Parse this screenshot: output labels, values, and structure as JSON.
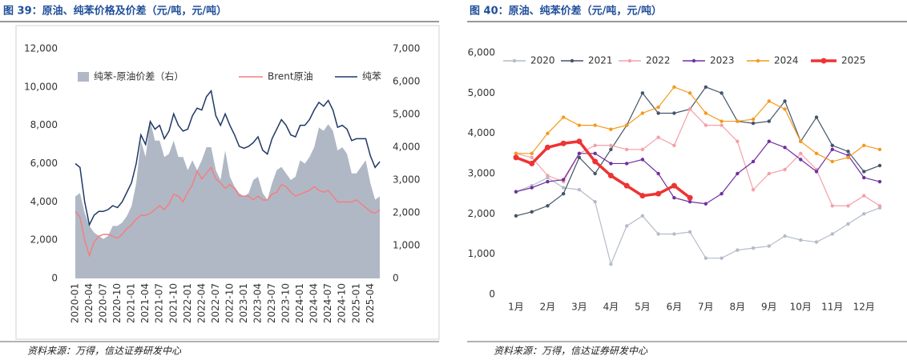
{
  "chart_data": [
    {
      "type": "line",
      "title": "图 39：原油、纯苯价格及价差（元/吨，元/吨）",
      "source": "资料来源：万得，信达证券研发中心",
      "categories": [
        "2020-01",
        null,
        null,
        "2020-04",
        null,
        null,
        "2020-07",
        null,
        null,
        "2020-10",
        null,
        null,
        "2021-01",
        null,
        null,
        "2021-04",
        null,
        null,
        "2021-07",
        null,
        null,
        "2021-10",
        null,
        null,
        "2022-01",
        null,
        null,
        "2022-04",
        null,
        null,
        "2022-07",
        null,
        null,
        "2022-10",
        null,
        null,
        "2023-01",
        null,
        null,
        "2023-04",
        null,
        null,
        "2023-07",
        null,
        null,
        "2023-10",
        null,
        null,
        "2024-01",
        null,
        null,
        "2024-04",
        null,
        null,
        "2024-07",
        null,
        null,
        "2024-10",
        null,
        null,
        "2025-01",
        null,
        null,
        "2025-04",
        null,
        null
      ],
      "series": [
        {
          "name": "纯苯-原油价差（右）",
          "type": "area",
          "axis": "y2",
          "color": "#b0b8c6",
          "values": [
            2500,
            2600,
            2000,
            1600,
            1400,
            1300,
            1200,
            1300,
            1600,
            1600,
            1700,
            1900,
            2200,
            2900,
            4200,
            3700,
            4800,
            4200,
            4200,
            3700,
            3800,
            4200,
            3700,
            3700,
            3300,
            3600,
            3300,
            3600,
            4000,
            4000,
            3300,
            3000,
            3900,
            3100,
            2800,
            2600,
            2500,
            2600,
            3000,
            3100,
            2600,
            2400,
            2900,
            3300,
            3400,
            3200,
            3000,
            3100,
            3600,
            3500,
            3700,
            4000,
            4600,
            4500,
            4700,
            4500,
            3900,
            4000,
            3800,
            3200,
            3200,
            3400,
            3600,
            2900,
            2400,
            2500
          ]
        },
        {
          "name": "Brent原油",
          "type": "line",
          "color": "#f47f7f",
          "values": [
            3500,
            3200,
            2000,
            1200,
            1900,
            2200,
            2300,
            2300,
            2200,
            2100,
            2300,
            2600,
            2800,
            3100,
            3300,
            3300,
            3400,
            3600,
            3800,
            3600,
            3900,
            4400,
            4300,
            4000,
            4500,
            4900,
            5600,
            5200,
            5500,
            5800,
            5200,
            5000,
            4700,
            4900,
            4700,
            4300,
            4300,
            4300,
            4100,
            4300,
            4100,
            4100,
            4400,
            4500,
            4900,
            4800,
            4500,
            4300,
            4400,
            4500,
            4600,
            4800,
            4600,
            4500,
            4600,
            4300,
            4000,
            4000,
            4000,
            4000,
            4100,
            3900,
            3700,
            3500,
            3400,
            3600
          ]
        },
        {
          "name": "纯苯",
          "type": "line",
          "color": "#1f3864",
          "values": [
            6000,
            5800,
            4000,
            2800,
            3300,
            3500,
            3500,
            3600,
            3800,
            3700,
            4000,
            4500,
            5000,
            6000,
            7500,
            7000,
            8200,
            7800,
            8000,
            7300,
            7700,
            8600,
            8000,
            7700,
            7800,
            8500,
            8900,
            8800,
            9500,
            9800,
            8500,
            8000,
            8600,
            8000,
            7500,
            6900,
            6800,
            6900,
            7100,
            7400,
            6700,
            6500,
            7300,
            7800,
            8300,
            8000,
            7500,
            7400,
            8000,
            8000,
            8300,
            8800,
            9200,
            9000,
            9300,
            8800,
            7900,
            8000,
            7800,
            7200,
            7300,
            7300,
            7300,
            6400,
            5800,
            6100
          ]
        }
      ],
      "ylim": [
        0,
        12000
      ],
      "yticks": [
        0,
        {
          "value": 2000,
          "label": "2,000"
        },
        {
          "value": 4000,
          "label": "4,000"
        },
        {
          "value": 6000,
          "label": "6,000"
        },
        {
          "value": 8000,
          "label": "8,000"
        },
        {
          "value": 10000,
          "label": "10,000"
        },
        {
          "value": 12000,
          "label": "12,000"
        }
      ],
      "y2lim": [
        0,
        7000
      ],
      "y2ticks": [
        0,
        {
          "value": 1000,
          "label": "1,000"
        },
        {
          "value": 2000,
          "label": "2,000"
        },
        {
          "value": 3000,
          "label": "3,000"
        },
        {
          "value": 4000,
          "label": "4,000"
        },
        {
          "value": 5000,
          "label": "5,000"
        },
        {
          "value": 6000,
          "label": "6,000"
        },
        {
          "value": 7000,
          "label": "7,000"
        }
      ],
      "grid": false,
      "legend": "top"
    },
    {
      "type": "line",
      "title": "图 40：原油、纯苯价差（元/吨，元/吨）",
      "source": "资料来源：万得，信达证券研发中心",
      "categories": [
        "1月",
        null,
        "2月",
        null,
        "3月",
        null,
        "4月",
        null,
        "5月",
        null,
        "6月",
        null,
        "7月",
        null,
        "8月",
        null,
        "9月",
        null,
        "10月",
        null,
        "11月",
        null,
        "12月",
        null
      ],
      "series": [
        {
          "name": "2020",
          "color": "#b4bcc8",
          "values": [
            2550,
            2700,
            2900,
            2650,
            2600,
            2300,
            750,
            1700,
            1950,
            1500,
            1500,
            1550,
            900,
            900,
            1100,
            1150,
            1200,
            1450,
            1350,
            1300,
            1500,
            1750,
            2000,
            2150
          ]
        },
        {
          "name": "2021",
          "color": "#44546a",
          "values": [
            1950,
            2050,
            2200,
            2500,
            3400,
            3000,
            3600,
            4200,
            5000,
            4500,
            4500,
            4600,
            5150,
            5000,
            4300,
            4250,
            4300,
            4800,
            3800,
            4400,
            3700,
            3550,
            3050,
            3200
          ]
        },
        {
          "name": "2022",
          "color": "#f4a0a8",
          "values": [
            3500,
            3400,
            2950,
            2800,
            3500,
            3700,
            3700,
            3600,
            3600,
            3900,
            3700,
            4600,
            4200,
            4200,
            3800,
            2600,
            3000,
            3100,
            3500,
            3100,
            2200,
            2200,
            2450,
            2200
          ]
        },
        {
          "name": "2023",
          "color": "#7030a0",
          "values": [
            2550,
            2650,
            2800,
            2850,
            3500,
            3500,
            3250,
            3250,
            3350,
            3000,
            2400,
            2300,
            2250,
            2500,
            3000,
            3300,
            3800,
            3650,
            3350,
            3050,
            3600,
            3450,
            2900,
            2800
          ]
        },
        {
          "name": "2024",
          "color": "#f59a1b",
          "values": [
            3500,
            3500,
            4000,
            4400,
            4200,
            4200,
            4100,
            4200,
            4500,
            4650,
            5150,
            5000,
            4500,
            4300,
            4300,
            4350,
            4800,
            4600,
            3800,
            3500,
            3300,
            3400,
            3700,
            3600
          ]
        },
        {
          "name": "2025",
          "color": "#ee3333",
          "values": [
            3400,
            3250,
            3650,
            3750,
            3800,
            3300,
            2950,
            2700,
            2450,
            2500,
            2700,
            2400,
            null,
            null,
            null,
            null,
            null,
            null,
            null,
            null,
            null,
            null,
            null,
            null
          ]
        }
      ],
      "ylim": [
        0,
        6000
      ],
      "yticks": [
        0,
        {
          "value": 1000,
          "label": "1,000"
        },
        {
          "value": 2000,
          "label": "2,000"
        },
        {
          "value": 3000,
          "label": "3,000"
        },
        {
          "value": 4000,
          "label": "4,000"
        },
        {
          "value": 5000,
          "label": "5,000"
        },
        {
          "value": 6000,
          "label": "6,000"
        }
      ],
      "grid": false,
      "legend": "top"
    }
  ]
}
